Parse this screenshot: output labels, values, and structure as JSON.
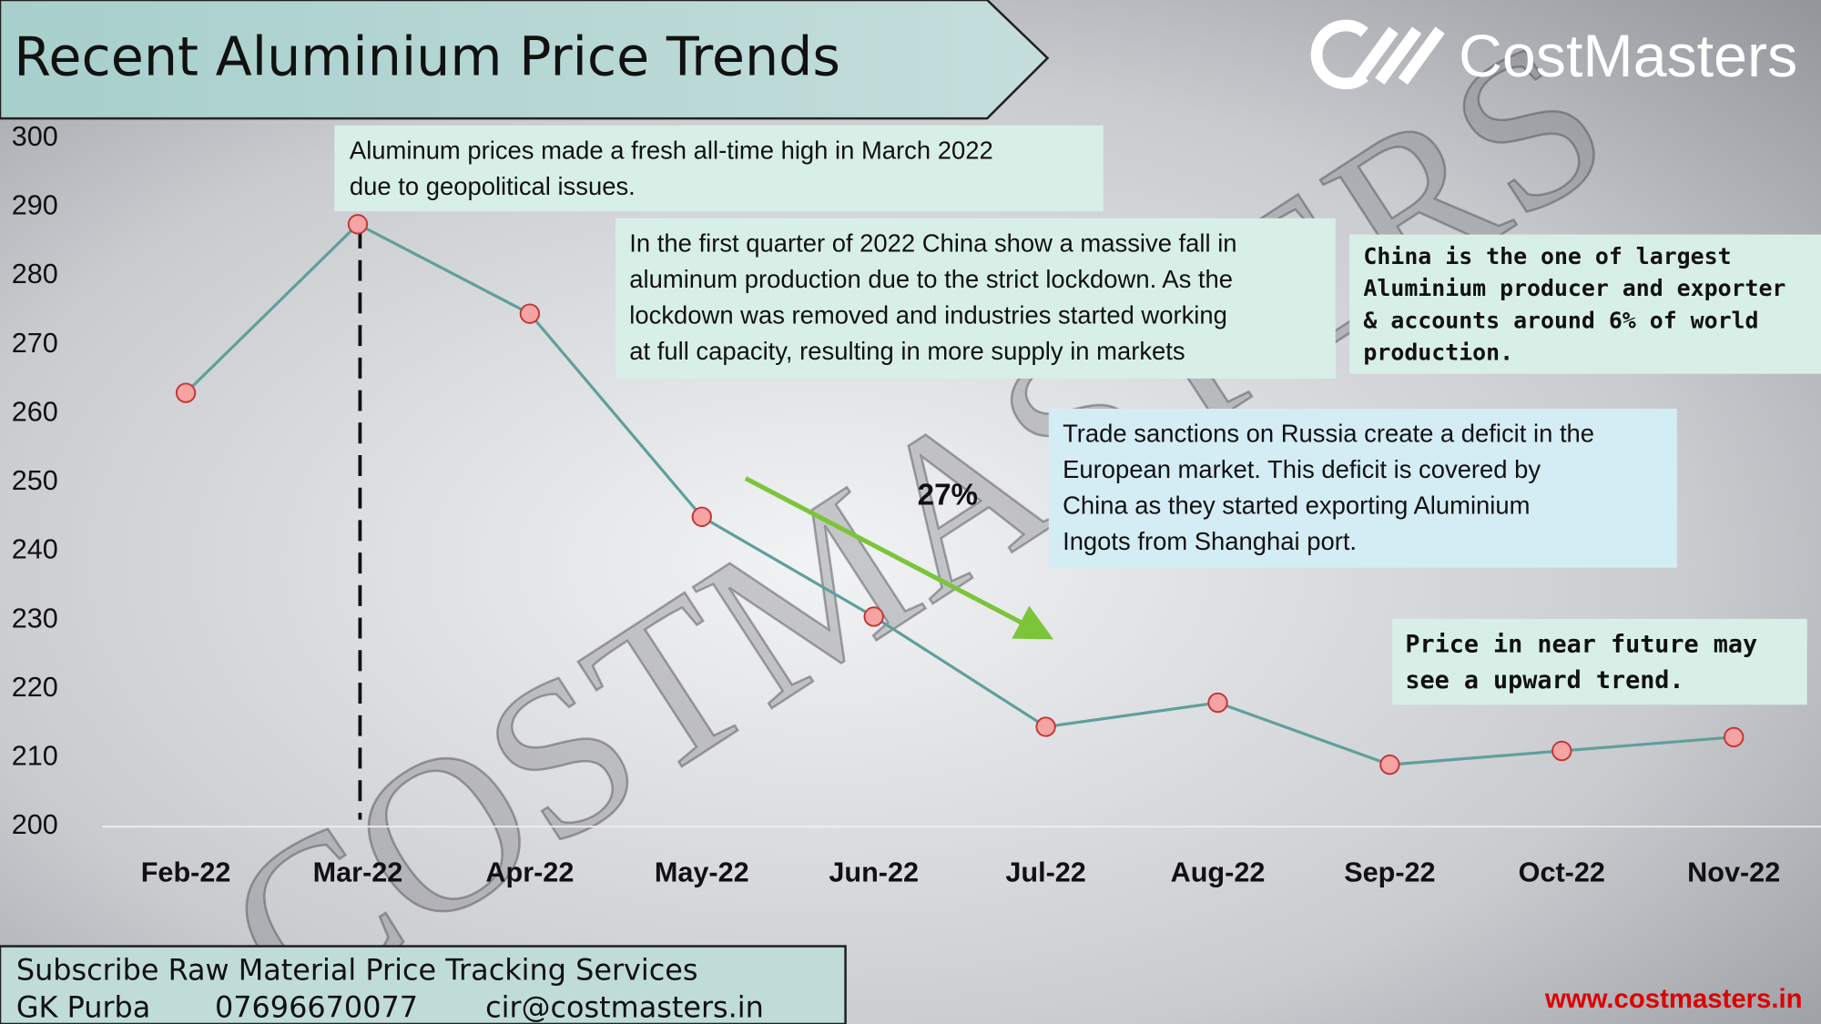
{
  "header": {
    "title": "Recent Aluminium Price Trends",
    "logo": "CostMasters",
    "watermark": "COSTMASTERS"
  },
  "chart_data": {
    "type": "line",
    "categories": [
      "Feb-22",
      "Mar-22",
      "Apr-22",
      "May-22",
      "Jun-22",
      "Jul-22",
      "Aug-22",
      "Sep-22",
      "Oct-22",
      "Nov-22"
    ],
    "values": [
      263,
      287.5,
      274.5,
      245,
      230.5,
      214.5,
      218,
      209,
      211,
      213
    ],
    "color": "#5f9f9c",
    "ylim": [
      200,
      300
    ],
    "yticks": [
      200,
      210,
      220,
      230,
      240,
      250,
      260,
      270,
      280,
      290,
      300
    ],
    "change_label": "27%",
    "annotations": [
      {
        "lines": [
          "Aluminum prices made a fresh all-time high in March 2022",
          "due to geopolitical issues."
        ]
      },
      {
        "lines": [
          "In the first quarter of 2022 China show a massive fall in",
          "aluminum production due to the strict lockdown. As the",
          "lockdown was removed and industries started working",
          "at full capacity, resulting in more supply in markets"
        ]
      },
      {
        "lines": [
          "China is the one of largest",
          "Aluminium producer and exporter",
          "& accounts around 6% of world",
          "production."
        ]
      },
      {
        "lines": [
          "Trade sanctions on Russia create a deficit in the",
          "European market. This deficit is covered by",
          "China as they started exporting Aluminium",
          "Ingots from Shanghai port."
        ]
      },
      {
        "lines": [
          "Price in near future may",
          "see a upward trend."
        ]
      }
    ]
  },
  "footer": {
    "subscribe": "Subscribe Raw Material Price Tracking Services",
    "name": "GK Purba",
    "phone": "07696670077",
    "email": "cir@costmasters.in",
    "website": "www.costmasters.in"
  }
}
